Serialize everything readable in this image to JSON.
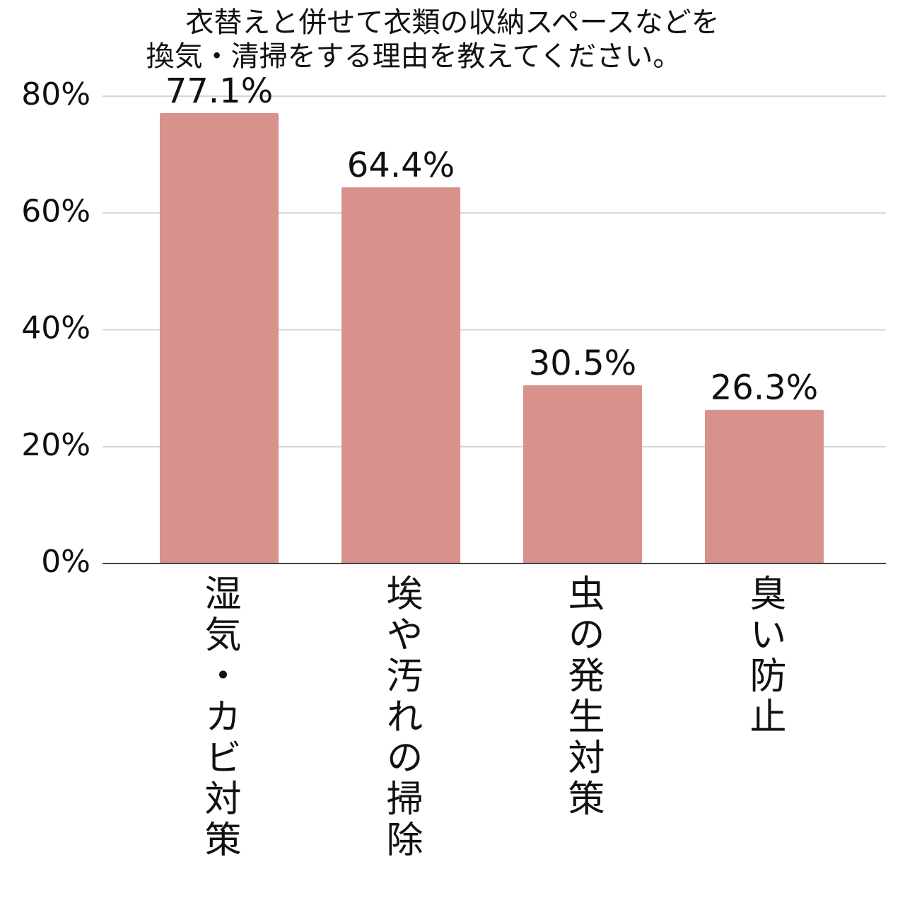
{
  "chart_data": {
    "type": "bar",
    "title": [
      "衣替えと併せて衣類の収納スペースなどを",
      "換気・清掃をする理由を教えてください。"
    ],
    "categories": [
      "湿気・カビ対策",
      "埃や汚れの掃除",
      "虫の発生対策",
      "臭い防止"
    ],
    "values": [
      77.1,
      64.4,
      30.5,
      26.3
    ],
    "value_labels": [
      "77.1%",
      "64.4%",
      "30.5%",
      "26.3%"
    ],
    "color": "#d9918c",
    "ylim": [
      0,
      80
    ],
    "yticks": [
      {
        "value": 0,
        "label": "0%"
      },
      {
        "value": 20,
        "label": "20%"
      },
      {
        "value": 40,
        "label": "40%"
      },
      {
        "value": 60,
        "label": "60%"
      },
      {
        "value": 80,
        "label": "80%"
      }
    ],
    "grid": true
  }
}
